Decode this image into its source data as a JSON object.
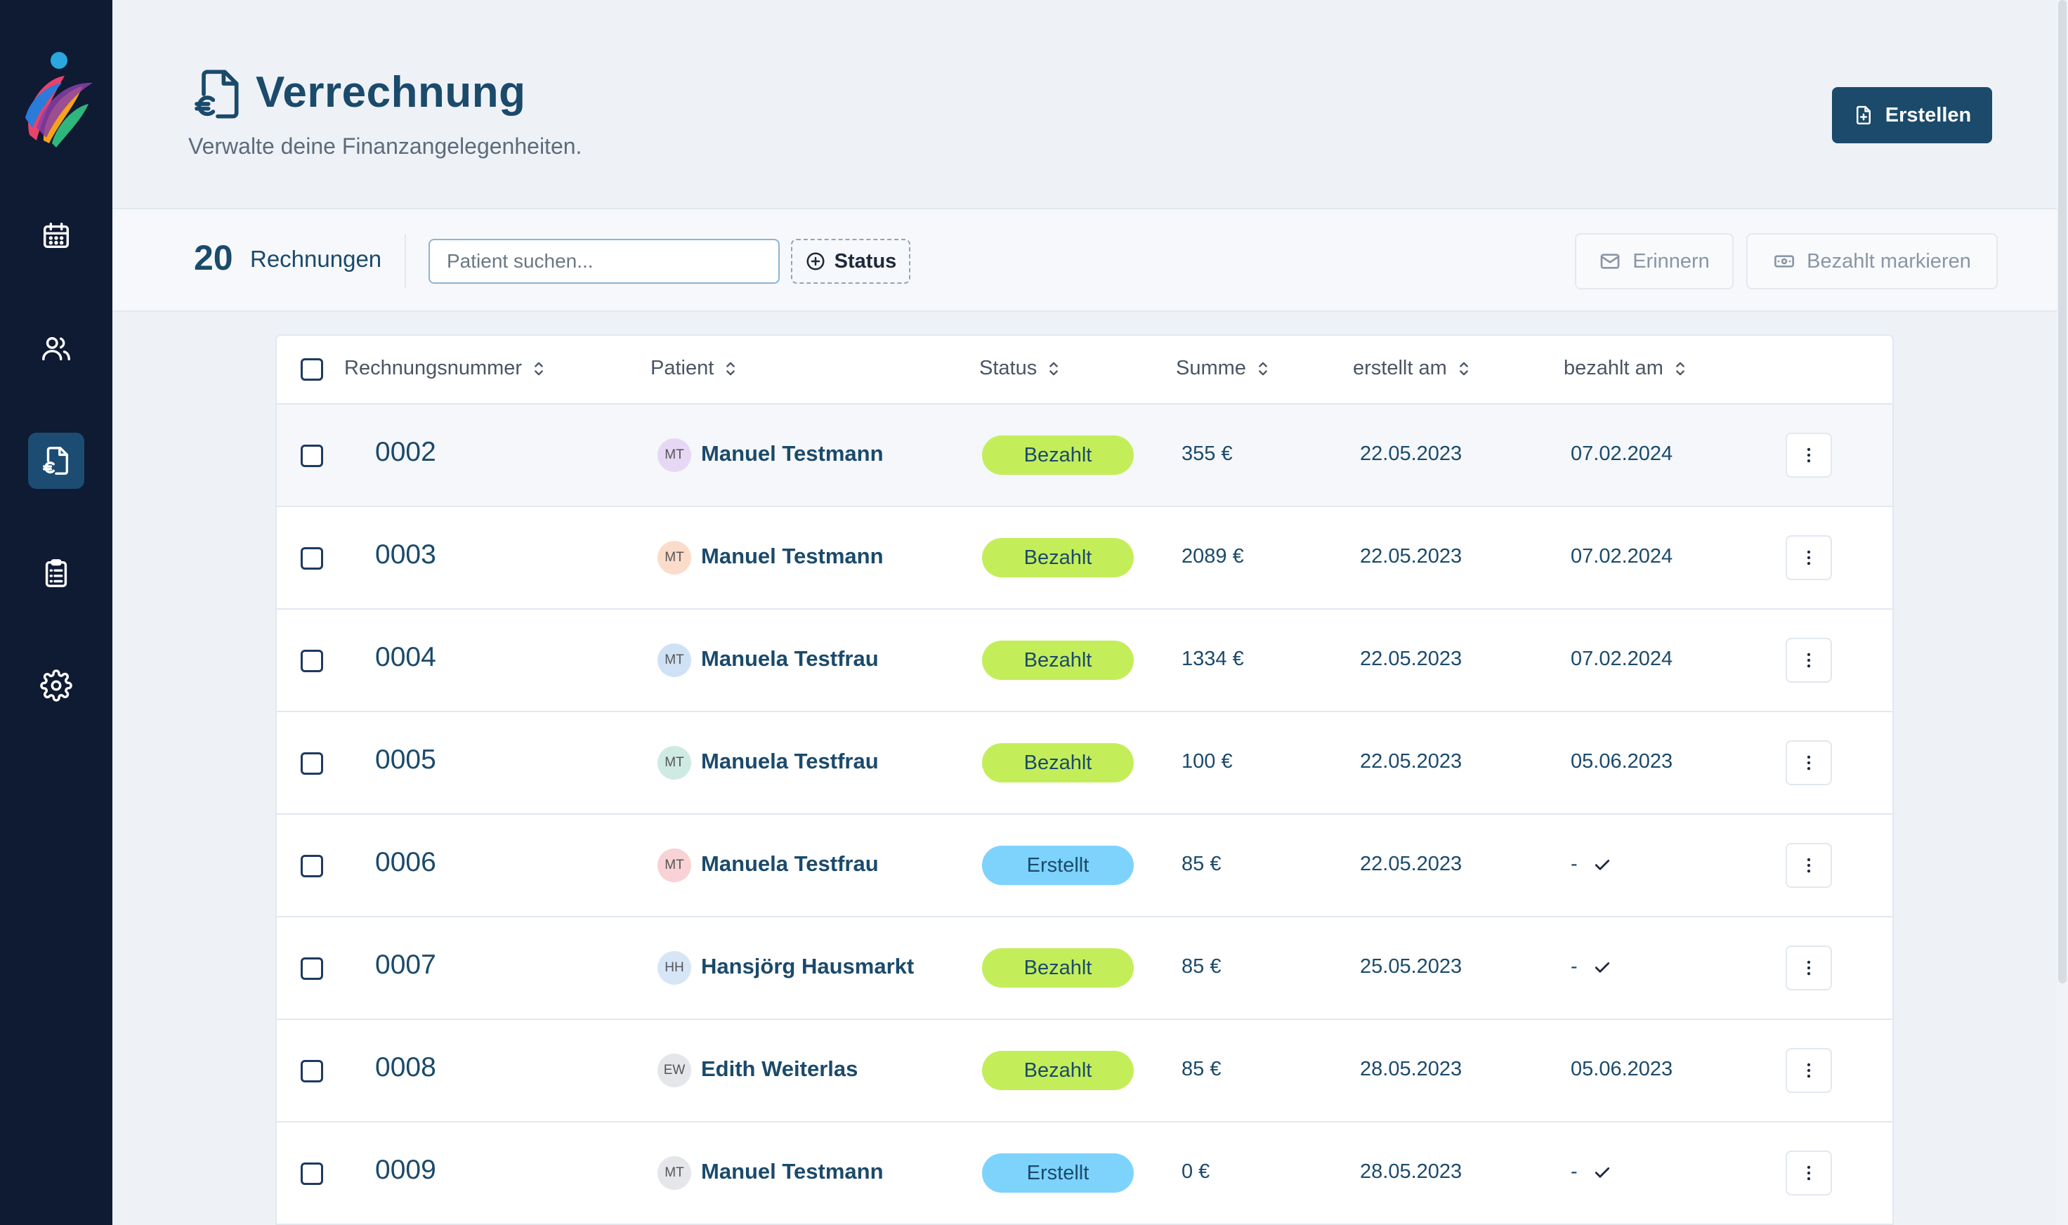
{
  "header": {
    "title": "Verrechnung",
    "subtitle": "Verwalte deine Finanzangelegenheiten.",
    "create_label": "Erstellen"
  },
  "sidebar": {
    "items": [
      {
        "name": "calendar",
        "icon": "calendar-icon",
        "active": false
      },
      {
        "name": "patients",
        "icon": "users-icon",
        "active": false
      },
      {
        "name": "billing",
        "icon": "invoice-euro-icon",
        "active": true
      },
      {
        "name": "clipboard",
        "icon": "clipboard-icon",
        "active": false
      },
      {
        "name": "settings",
        "icon": "gear-icon",
        "active": false
      }
    ]
  },
  "toolbar": {
    "count": "20",
    "count_label": "Rechnungen",
    "search_placeholder": "Patient suchen...",
    "status_filter_label": "Status",
    "remind_label": "Erinnern",
    "mark_paid_label": "Bezahlt markieren"
  },
  "table": {
    "columns": [
      "Rechnungsnummer",
      "Patient",
      "Status",
      "Summe",
      "erstellt am",
      "bezahlt am"
    ],
    "rows": [
      {
        "number": "0002",
        "initials": "MT",
        "avatar_color": "#e6d8f5",
        "patient": "Manuel Testmann",
        "status": "Bezahlt",
        "sum": "355 €",
        "created": "22.05.2023",
        "paid": "07.02.2024"
      },
      {
        "number": "0003",
        "initials": "MT",
        "avatar_color": "#fbdccb",
        "patient": "Manuel Testmann",
        "status": "Bezahlt",
        "sum": "2089 €",
        "created": "22.05.2023",
        "paid": "07.02.2024"
      },
      {
        "number": "0004",
        "initials": "MT",
        "avatar_color": "#cfe2f5",
        "patient": "Manuela Testfrau",
        "status": "Bezahlt",
        "sum": "1334 €",
        "created": "22.05.2023",
        "paid": "07.02.2024"
      },
      {
        "number": "0005",
        "initials": "MT",
        "avatar_color": "#cfeae3",
        "patient": "Manuela Testfrau",
        "status": "Bezahlt",
        "sum": "100 €",
        "created": "22.05.2023",
        "paid": "05.06.2023"
      },
      {
        "number": "0006",
        "initials": "MT",
        "avatar_color": "#f8d2d4",
        "patient": "Manuela Testfrau",
        "status": "Erstellt",
        "sum": "85 €",
        "created": "22.05.2023",
        "paid": "-"
      },
      {
        "number": "0007",
        "initials": "HH",
        "avatar_color": "#d6e6f7",
        "patient": "Hansjörg Hausmarkt",
        "status": "Bezahlt",
        "sum": "85 €",
        "created": "25.05.2023",
        "paid": "-"
      },
      {
        "number": "0008",
        "initials": "EW",
        "avatar_color": "#e4e6e9",
        "patient": "Edith Weiterlas",
        "status": "Bezahlt",
        "sum": "85 €",
        "created": "28.05.2023",
        "paid": "05.06.2023"
      },
      {
        "number": "0009",
        "initials": "MT",
        "avatar_color": "#e4e6e9",
        "patient": "Manuel Testmann",
        "status": "Erstellt",
        "sum": "0 €",
        "created": "28.05.2023",
        "paid": "-"
      }
    ]
  },
  "colors": {
    "sidebar_bg": "#0f1a33",
    "primary": "#1b4a6b",
    "badge_paid": "#c3ee5a",
    "badge_created": "#7dd3fc"
  }
}
